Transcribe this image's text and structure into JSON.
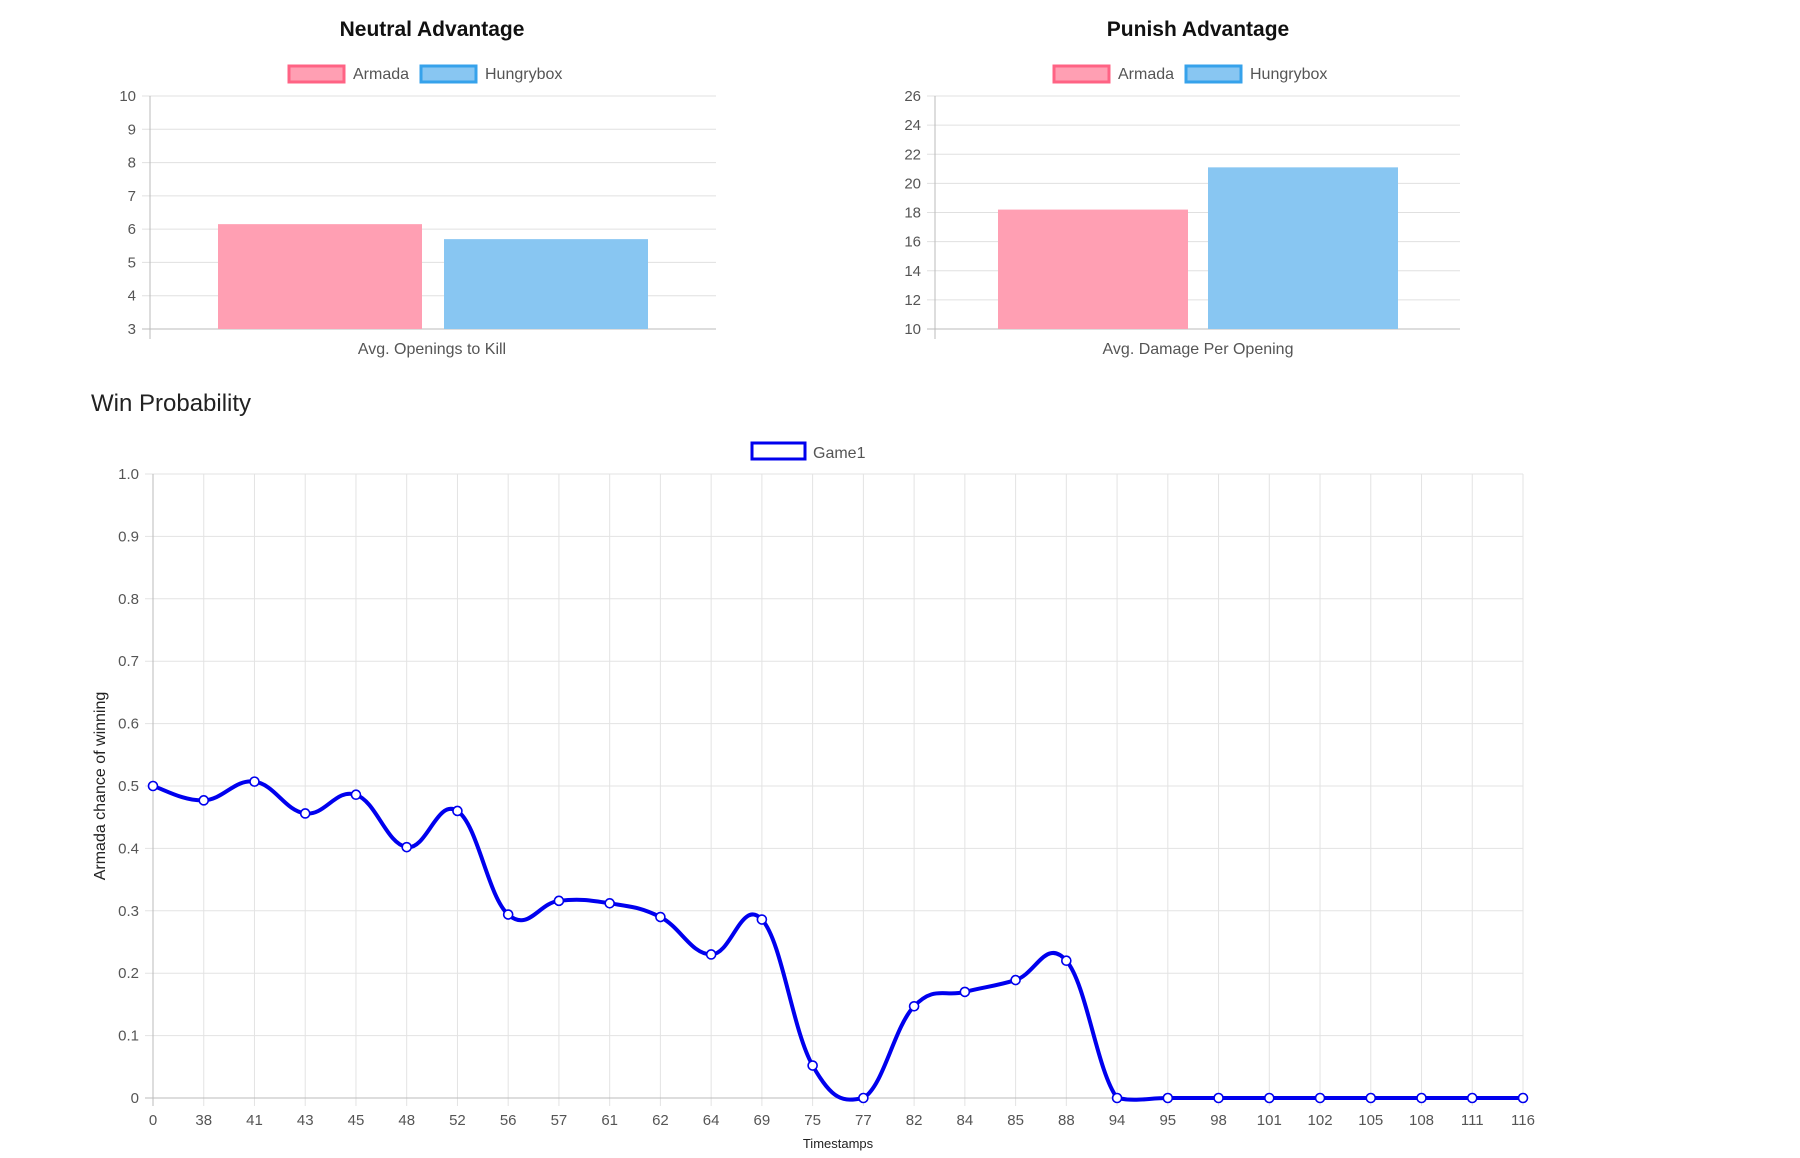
{
  "section_title": "Win Probability",
  "chart_data": [
    {
      "type": "bar",
      "title": "Neutral Advantage",
      "categories": [
        "Avg. Openings to Kill"
      ],
      "series": [
        {
          "name": "Armada",
          "values": [
            6.15
          ],
          "fill": "#ff9fb3",
          "stroke": "#ff6384"
        },
        {
          "name": "Hungrybox",
          "values": [
            5.7
          ],
          "fill": "#88c6f2",
          "stroke": "#36a2eb"
        }
      ],
      "ylim": [
        3,
        10
      ],
      "yticks": [
        3,
        4,
        5,
        6,
        7,
        8,
        9,
        10
      ],
      "grid": true,
      "legend": "top"
    },
    {
      "type": "bar",
      "title": "Punish Advantage",
      "categories": [
        "Avg. Damage Per Opening"
      ],
      "series": [
        {
          "name": "Armada",
          "values": [
            18.2
          ],
          "fill": "#ff9fb3",
          "stroke": "#ff6384"
        },
        {
          "name": "Hungrybox",
          "values": [
            21.1
          ],
          "fill": "#88c6f2",
          "stroke": "#36a2eb"
        }
      ],
      "ylim": [
        10,
        26
      ],
      "yticks": [
        10,
        12,
        14,
        16,
        18,
        20,
        22,
        24,
        26
      ],
      "grid": true,
      "legend": "top"
    },
    {
      "type": "line",
      "title": "",
      "xlabel": "Timestamps",
      "ylabel": "Armada chance of winning",
      "categories": [
        "0",
        "38",
        "41",
        "43",
        "45",
        "48",
        "52",
        "56",
        "57",
        "61",
        "62",
        "64",
        "69",
        "75",
        "77",
        "82",
        "84",
        "85",
        "88",
        "94",
        "95",
        "98",
        "101",
        "102",
        "105",
        "108",
        "111",
        "116"
      ],
      "series": [
        {
          "name": "Game1",
          "color": "#0000ee",
          "values": [
            0.5,
            0.477,
            0.507,
            0.456,
            0.486,
            0.402,
            0.46,
            0.294,
            0.316,
            0.312,
            0.29,
            0.23,
            0.286,
            0.052,
            0,
            0.147,
            0.17,
            0.189,
            0.22,
            0,
            0,
            0,
            0,
            0,
            0,
            0,
            0,
            0
          ]
        }
      ],
      "ylim": [
        0,
        1
      ],
      "yticks": [
        "0",
        "0.1",
        "0.2",
        "0.3",
        "0.4",
        "0.5",
        "0.6",
        "0.7",
        "0.8",
        "0.9",
        "1.0"
      ],
      "grid": true,
      "legend": "top"
    }
  ]
}
